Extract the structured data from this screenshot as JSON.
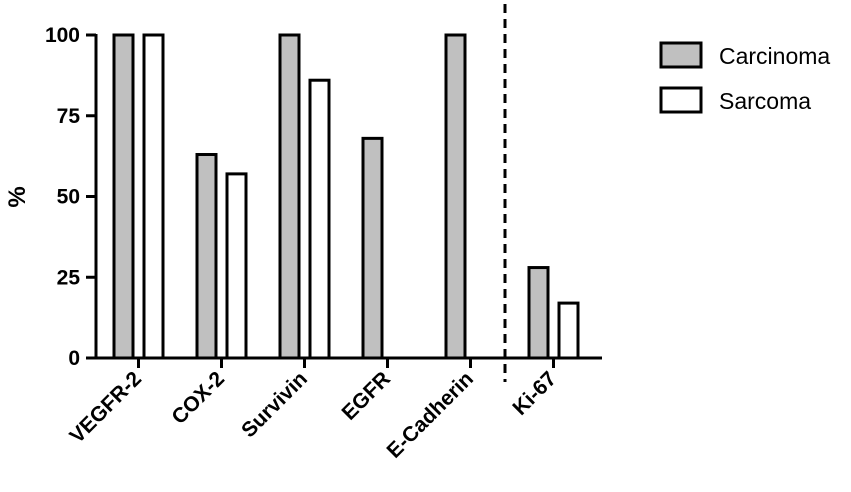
{
  "chart_data": {
    "type": "bar",
    "title": "",
    "xlabel": "",
    "ylabel": "%",
    "ylim": [
      0,
      100
    ],
    "yticks": [
      0,
      25,
      50,
      75,
      100
    ],
    "categories": [
      "VEGFR-2",
      "COX-2",
      "Survivin",
      "EGFR",
      "E-Cadherin",
      "Ki-67"
    ],
    "series": [
      {
        "name": "Carcinoma",
        "color": "#c0c0c0",
        "values": [
          100,
          63,
          100,
          68,
          100,
          28
        ]
      },
      {
        "name": "Sarcoma",
        "color": "#ffffff",
        "values": [
          100,
          57,
          86,
          0,
          0,
          17
        ]
      }
    ],
    "separator": {
      "style": "dashed",
      "between": [
        "E-Cadherin",
        "Ki-67"
      ]
    },
    "legend": {
      "placement": "top-right"
    },
    "grid": false
  }
}
